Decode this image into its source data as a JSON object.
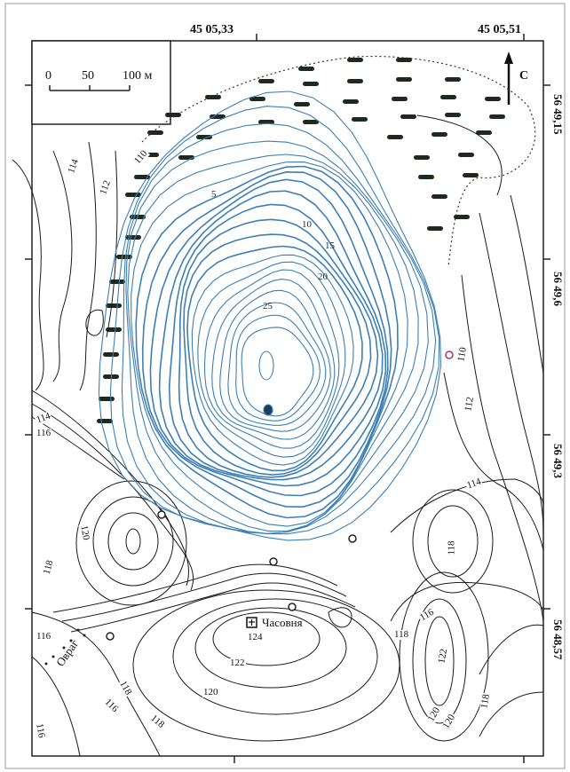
{
  "map": {
    "top_coords": [
      "45 05,33",
      "45 05,51"
    ],
    "right_coords": [
      "56 49,15",
      "56 49,6",
      "56 49,3",
      "56 48,57"
    ],
    "north_label": "С",
    "scale": {
      "ticks": [
        "0",
        "50",
        "100 м"
      ]
    },
    "contour_labels": [
      "110",
      "112",
      "114",
      "114",
      "116",
      "116",
      "118",
      "120",
      "118",
      "116",
      "118",
      "120",
      "122",
      "124",
      "116",
      "118",
      "120",
      "116",
      "122",
      "120",
      "118",
      "114",
      "112",
      "110",
      "118"
    ],
    "depth_labels": [
      "5",
      "10",
      "15",
      "20",
      "25"
    ],
    "places": {
      "chapel": "Часовня",
      "ravine": "Овраг"
    },
    "colors": {
      "lake_contour": "#3d7fb5",
      "land_contour": "#1a1a1a",
      "marsh": "#1f2a1f",
      "frame": "#222222",
      "spring_marker": "#b0306a"
    }
  }
}
